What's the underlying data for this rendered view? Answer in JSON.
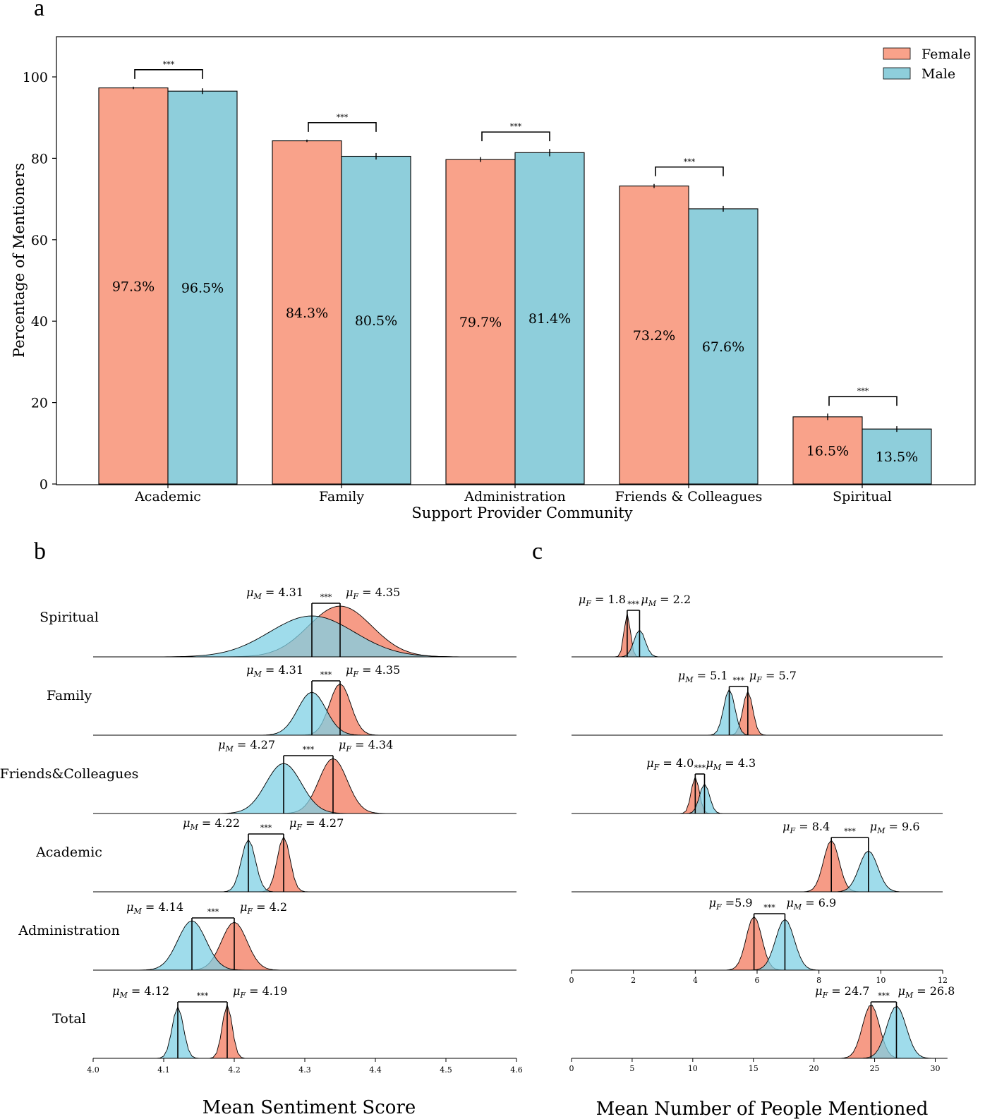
{
  "colors": {
    "female": "#F9A28A",
    "male": "#8ECEDB",
    "male_density": "#7FD0E4",
    "female_density": "#F59079",
    "edge": "#000000"
  },
  "chart_data": [
    {
      "panel": "a",
      "type": "bar",
      "xlabel": "Support Provider Community",
      "ylabel": "Percentage of Mentioners",
      "ylim": [
        0,
        110
      ],
      "yticks": [
        0,
        20,
        40,
        60,
        80,
        100
      ],
      "categories": [
        "Academic",
        "Family",
        "Administration",
        "Friends & Colleagues",
        "Spiritual"
      ],
      "series": [
        {
          "name": "Female",
          "values": [
            97.3,
            84.3,
            79.7,
            73.2,
            16.5
          ],
          "labels": [
            "97.3%",
            "84.3%",
            "79.7%",
            "73.2%",
            "16.5%"
          ],
          "errors": [
            0.3,
            0.3,
            0.6,
            0.5,
            0.8
          ]
        },
        {
          "name": "Male",
          "values": [
            96.5,
            80.5,
            81.4,
            67.6,
            13.5
          ],
          "labels": [
            "96.5%",
            "80.5%",
            "81.4%",
            "67.6%",
            "13.5%"
          ],
          "errors": [
            0.7,
            0.8,
            0.9,
            0.7,
            0.7
          ]
        }
      ],
      "significance": [
        "***",
        "***",
        "***",
        "***",
        "***"
      ],
      "legend": "top-right"
    },
    {
      "panel": "b",
      "type": "area",
      "xlabel": "Mean Sentiment Score",
      "xlim": [
        4.0,
        4.6
      ],
      "xticks": [
        "4.0",
        "4.1",
        "4.2",
        "4.3",
        "4.4",
        "4.5",
        "4.6"
      ],
      "rows": [
        {
          "label": "Spiritual",
          "male_mean": 4.31,
          "female_mean": 4.35,
          "male_sd": 0.06,
          "female_sd": 0.045,
          "male_text": "= 4.31",
          "female_text": "= 4.35",
          "sig": "***"
        },
        {
          "label": "Family",
          "male_mean": 4.31,
          "female_mean": 4.35,
          "male_sd": 0.02,
          "female_sd": 0.015,
          "male_text": "= 4.31",
          "female_text": "= 4.35",
          "sig": "***"
        },
        {
          "label": "Friends&Colleagues",
          "male_mean": 4.27,
          "female_mean": 4.34,
          "male_sd": 0.025,
          "female_sd": 0.02,
          "male_text": "= 4.27",
          "female_text": "= 4.34",
          "sig": "***"
        },
        {
          "label": "Academic",
          "male_mean": 4.22,
          "female_mean": 4.27,
          "male_sd": 0.01,
          "female_sd": 0.009,
          "male_text": "= 4.22",
          "female_text": "= 4.27",
          "sig": "***"
        },
        {
          "label": "Administration",
          "male_mean": 4.14,
          "female_mean": 4.2,
          "male_sd": 0.02,
          "female_sd": 0.018,
          "male_text": "= 4.14",
          "female_text": "= 4.2",
          "sig": "***"
        },
        {
          "label": "Total",
          "male_mean": 4.12,
          "female_mean": 4.19,
          "male_sd": 0.008,
          "female_sd": 0.007,
          "male_text": "= 4.12",
          "female_text": "= 4.19",
          "sig": "***"
        }
      ]
    },
    {
      "panel": "c",
      "type": "area",
      "xlabel": "Mean Number of People Mentioned",
      "rows": [
        {
          "male_mean": 2.2,
          "female_mean": 1.8,
          "male_sd": 0.18,
          "female_sd": 0.1,
          "male_text": "= 2.2",
          "female_text": "= 1.8",
          "sig": "***",
          "female_first": true,
          "scale": "small"
        },
        {
          "male_mean": 5.1,
          "female_mean": 5.7,
          "male_sd": 0.18,
          "female_sd": 0.16,
          "male_text": "= 5.1",
          "female_text": "= 5.7",
          "sig": "***",
          "female_first": false,
          "scale": "small"
        },
        {
          "male_mean": 4.3,
          "female_mean": 4.0,
          "male_sd": 0.16,
          "female_sd": 0.13,
          "male_text": "= 4.3",
          "female_text": "= 4.0",
          "sig": "***",
          "female_first": true,
          "scale": "small"
        },
        {
          "male_mean": 9.6,
          "female_mean": 8.4,
          "male_sd": 0.3,
          "female_sd": 0.25,
          "male_text": "= 9.6",
          "female_text": "= 8.4",
          "sig": "***",
          "female_first": true,
          "scale": "small"
        },
        {
          "male_mean": 6.9,
          "female_mean": 5.9,
          "male_sd": 0.3,
          "female_sd": 0.25,
          "male_text": "= 6.9",
          "female_text": "=5.9",
          "sig": "***",
          "female_first": true,
          "scale": "small",
          "xticks": [
            "0",
            "2",
            "4",
            "6",
            "8",
            "10",
            "12"
          ],
          "xlim": [
            0,
            12
          ]
        },
        {
          "male_mean": 26.8,
          "female_mean": 24.7,
          "male_sd": 0.8,
          "female_sd": 0.7,
          "male_text": "= 26.8",
          "female_text": "= 24.7",
          "sig": "***",
          "female_first": true,
          "scale": "large",
          "xticks": [
            "0",
            "5",
            "10",
            "15",
            "20",
            "25",
            "30"
          ],
          "xlim": [
            0,
            30
          ]
        }
      ]
    }
  ],
  "panels": {
    "a": "a",
    "b": "b",
    "c": "c"
  },
  "legend": {
    "female": "Female",
    "male": "Male"
  },
  "symbols": {
    "mu": "μ",
    "M": "M",
    "F": "F"
  }
}
